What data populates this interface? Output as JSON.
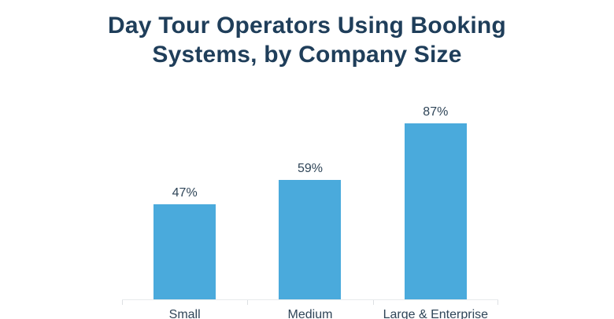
{
  "chart_data": {
    "type": "bar",
    "title": "Day Tour Operators Using Booking Systems, by Company Size",
    "categories": [
      "Small",
      "Medium",
      "Large & Enterprise"
    ],
    "values": [
      47,
      59,
      87
    ],
    "value_labels": [
      "47%",
      "59%",
      "87%"
    ],
    "unit": "%",
    "ylim": [
      0,
      100
    ],
    "grid": false,
    "legend": false,
    "y_axis_visible": false,
    "x_axis_visible": true,
    "colors": {
      "bar_fill": "#4AAADC",
      "title_text": "#1F3E5A",
      "label_text": "#2F4558",
      "axis_line": "#E8EAEC",
      "background": "#FFFFFF"
    }
  }
}
